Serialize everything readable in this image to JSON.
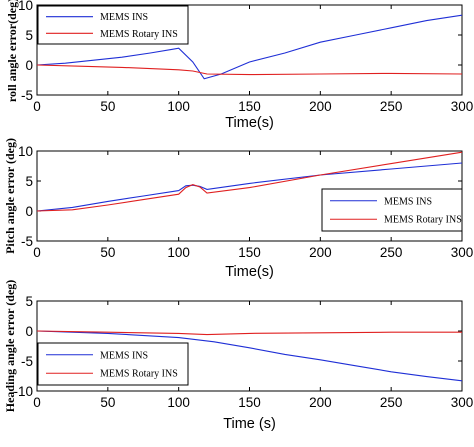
{
  "chart_data": [
    {
      "type": "line",
      "xlabel": "Time(s)",
      "ylabel": "roll angle error(deg)",
      "xlim": [
        0,
        300
      ],
      "ylim": [
        -5,
        10
      ],
      "xticks": [
        0,
        50,
        100,
        150,
        200,
        250,
        300
      ],
      "yticks": [
        -5,
        0,
        5,
        10
      ],
      "legend_position": "top-left",
      "series": [
        {
          "name": "MEMS INS",
          "color": "#1f2fd6",
          "x": [
            0,
            20,
            40,
            60,
            80,
            95,
            100,
            110,
            118,
            130,
            150,
            175,
            200,
            225,
            250,
            275,
            300
          ],
          "y": [
            0,
            0.3,
            0.8,
            1.3,
            2.0,
            2.6,
            2.8,
            0.5,
            -2.3,
            -1.5,
            0.5,
            2.0,
            3.8,
            5.0,
            6.2,
            7.4,
            8.3
          ]
        },
        {
          "name": "MEMS Rotary INS",
          "color": "#e02020",
          "x": [
            0,
            30,
            60,
            90,
            100,
            110,
            120,
            150,
            200,
            250,
            300
          ],
          "y": [
            0,
            -0.2,
            -0.4,
            -0.7,
            -0.8,
            -1.0,
            -1.5,
            -1.6,
            -1.5,
            -1.4,
            -1.5
          ]
        }
      ]
    },
    {
      "type": "line",
      "xlabel": "Time(s)",
      "ylabel": "Pitch angle error (deg)",
      "xlim": [
        0,
        300
      ],
      "ylim": [
        -5,
        10
      ],
      "xticks": [
        0,
        50,
        100,
        150,
        200,
        250,
        300
      ],
      "yticks": [
        -5,
        0,
        5,
        10
      ],
      "legend_position": "bottom-right",
      "series": [
        {
          "name": "MEMS INS",
          "color": "#1f2fd6",
          "x": [
            0,
            25,
            50,
            75,
            100,
            105,
            110,
            115,
            120,
            150,
            200,
            250,
            300
          ],
          "y": [
            0,
            0.6,
            1.6,
            2.5,
            3.4,
            4.2,
            4.3,
            4.1,
            3.6,
            4.6,
            6.0,
            7.0,
            8.0
          ]
        },
        {
          "name": "MEMS Rotary INS",
          "color": "#e02020",
          "x": [
            0,
            25,
            50,
            75,
            100,
            105,
            110,
            115,
            120,
            150,
            200,
            250,
            300
          ],
          "y": [
            0,
            0.2,
            1.0,
            1.9,
            2.8,
            3.9,
            4.4,
            4.0,
            3.0,
            3.9,
            6.0,
            7.9,
            9.8
          ]
        }
      ]
    },
    {
      "type": "line",
      "xlabel": "Time (s)",
      "ylabel": "Heading angle error (deg)",
      "xlim": [
        0,
        300
      ],
      "ylim": [
        -10,
        5
      ],
      "xticks": [
        0,
        50,
        100,
        150,
        200,
        250,
        300
      ],
      "yticks": [
        -10,
        -5,
        0,
        5
      ],
      "legend_position": "bottom-left",
      "series": [
        {
          "name": "MEMS INS",
          "color": "#1f2fd6",
          "x": [
            0,
            50,
            100,
            125,
            150,
            175,
            200,
            225,
            250,
            275,
            300
          ],
          "y": [
            0,
            -0.4,
            -1.1,
            -1.8,
            -2.8,
            -3.9,
            -4.8,
            -5.8,
            -6.8,
            -7.6,
            -8.3
          ]
        },
        {
          "name": "MEMS Rotary INS",
          "color": "#e02020",
          "x": [
            0,
            50,
            100,
            120,
            150,
            200,
            250,
            300
          ],
          "y": [
            0,
            -0.2,
            -0.4,
            -0.6,
            -0.4,
            -0.3,
            -0.2,
            -0.2
          ]
        }
      ]
    }
  ]
}
